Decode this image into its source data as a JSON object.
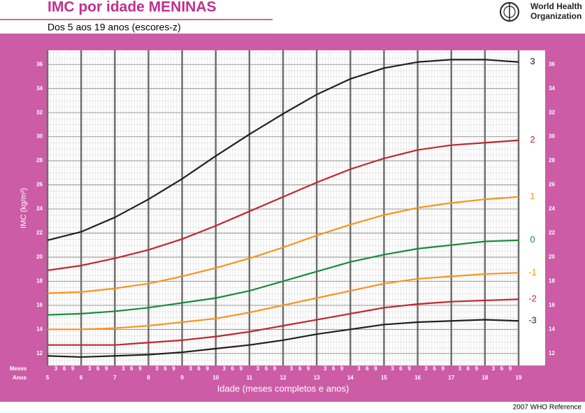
{
  "chart_data": {
    "type": "line",
    "title": "IMC por idade MENINAS",
    "subtitle": "Dos 5 aos 19 anos (escores-z)",
    "organization": [
      "World Health",
      "Organization"
    ],
    "footer": "2007 WHO Reference",
    "x_label": "Idade (meses completos e anos)",
    "y_label": "IMC (kg/m²)",
    "x_row_labels": [
      "Meses",
      "Anos"
    ],
    "month_labels": [
      "3",
      "6",
      "9"
    ],
    "x": [
      5,
      6,
      7,
      8,
      9,
      10,
      11,
      12,
      13,
      14,
      15,
      16,
      17,
      18,
      19
    ],
    "xlim": [
      5,
      19
    ],
    "xticks": [
      5,
      6,
      7,
      8,
      9,
      10,
      11,
      12,
      13,
      14,
      15,
      16,
      17,
      18,
      19
    ],
    "ylim": [
      11,
      37
    ],
    "yticks": [
      12,
      14,
      16,
      18,
      20,
      22,
      24,
      26,
      28,
      30,
      32,
      34,
      36
    ],
    "grid": true,
    "series": [
      {
        "name": "3",
        "color": "#231f20",
        "values": [
          21.4,
          22.1,
          23.3,
          24.8,
          26.5,
          28.4,
          30.2,
          31.9,
          33.5,
          34.8,
          35.7,
          36.2,
          36.4,
          36.4,
          36.2
        ]
      },
      {
        "name": "2",
        "color": "#c1272d",
        "values": [
          18.9,
          19.3,
          19.9,
          20.6,
          21.5,
          22.6,
          23.8,
          25.0,
          26.2,
          27.3,
          28.2,
          28.9,
          29.3,
          29.5,
          29.7
        ]
      },
      {
        "name": "1",
        "color": "#f7941d",
        "values": [
          17.0,
          17.1,
          17.4,
          17.8,
          18.4,
          19.1,
          19.9,
          20.8,
          21.8,
          22.7,
          23.5,
          24.1,
          24.5,
          24.8,
          25.0
        ]
      },
      {
        "name": "0",
        "color": "#1a8a3c",
        "values": [
          15.2,
          15.3,
          15.5,
          15.8,
          16.2,
          16.6,
          17.2,
          18.0,
          18.8,
          19.6,
          20.2,
          20.7,
          21.0,
          21.3,
          21.4
        ]
      },
      {
        "name": "-1",
        "color": "#f7941d",
        "values": [
          14.0,
          14.0,
          14.1,
          14.3,
          14.6,
          14.9,
          15.4,
          16.0,
          16.6,
          17.2,
          17.8,
          18.2,
          18.4,
          18.6,
          18.7
        ]
      },
      {
        "name": "-2",
        "color": "#c1272d",
        "values": [
          12.7,
          12.7,
          12.7,
          12.9,
          13.1,
          13.4,
          13.8,
          14.3,
          14.8,
          15.3,
          15.8,
          16.1,
          16.3,
          16.4,
          16.5
        ]
      },
      {
        "name": "-3",
        "color": "#231f20",
        "values": [
          11.8,
          11.7,
          11.8,
          11.9,
          12.1,
          12.4,
          12.7,
          13.1,
          13.6,
          14.0,
          14.4,
          14.6,
          14.7,
          14.8,
          14.7
        ]
      }
    ]
  }
}
